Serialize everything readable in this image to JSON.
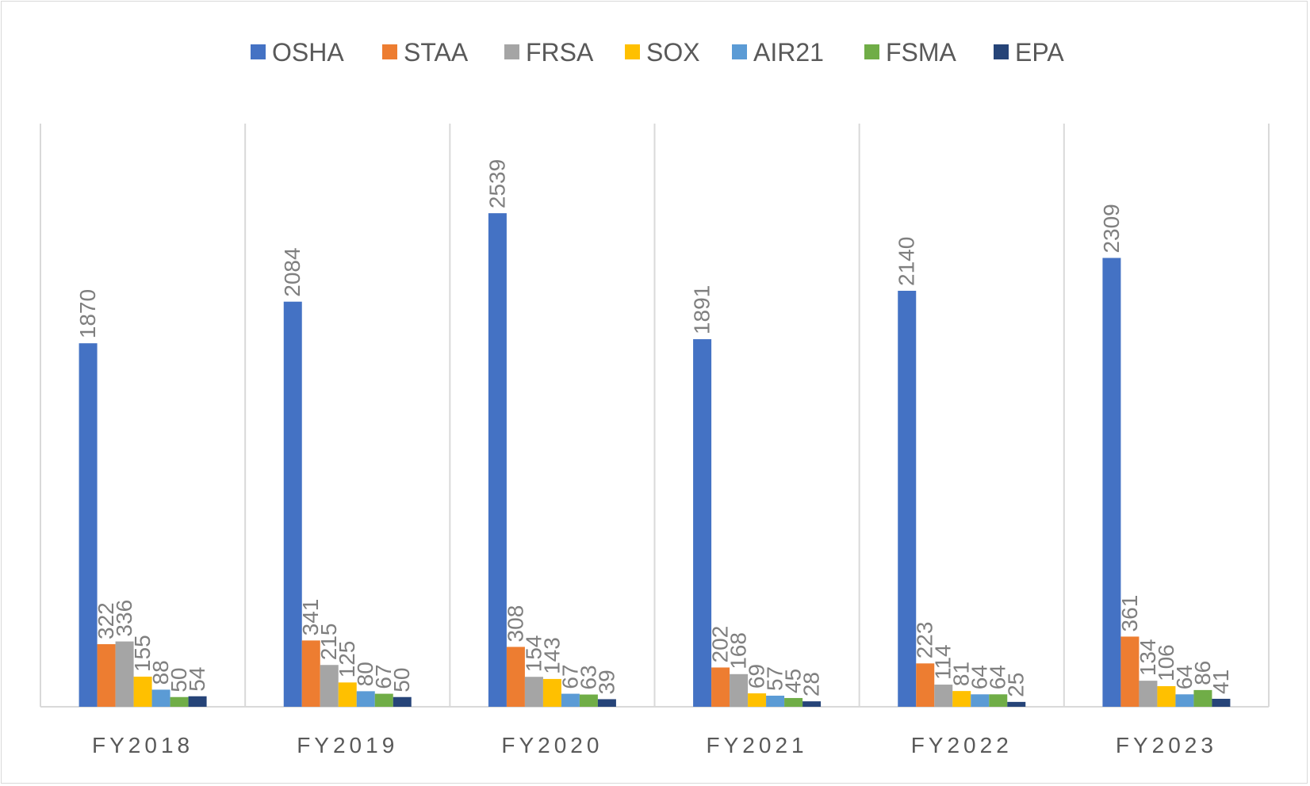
{
  "chart_data": {
    "type": "bar",
    "categories": [
      "FY2018",
      "FY2019",
      "FY2020",
      "FY2021",
      "FY2022",
      "FY2023"
    ],
    "series": [
      {
        "name": "OSHA",
        "color": "#4472c4",
        "values": [
          1870,
          2084,
          2539,
          1891,
          2140,
          2309
        ]
      },
      {
        "name": "STAA",
        "color": "#ed7d31",
        "values": [
          322,
          341,
          308,
          202,
          223,
          361
        ]
      },
      {
        "name": "FRSA",
        "color": "#a5a5a5",
        "values": [
          336,
          215,
          154,
          168,
          114,
          134
        ]
      },
      {
        "name": "SOX",
        "color": "#ffc000",
        "values": [
          155,
          125,
          143,
          69,
          81,
          106
        ]
      },
      {
        "name": "AIR21",
        "color": "#5b9bd5",
        "values": [
          88,
          80,
          67,
          57,
          64,
          64
        ]
      },
      {
        "name": "FSMA",
        "color": "#70ad47",
        "values": [
          50,
          67,
          63,
          45,
          64,
          86
        ]
      },
      {
        "name": "EPA",
        "color": "#264478",
        "values": [
          54,
          50,
          39,
          28,
          25,
          41
        ]
      }
    ],
    "ylim": [
      0,
      3000
    ],
    "legend": "top",
    "grid": "vertical category separators",
    "data_labels": true,
    "data_label_color": "#7f7f7f"
  }
}
